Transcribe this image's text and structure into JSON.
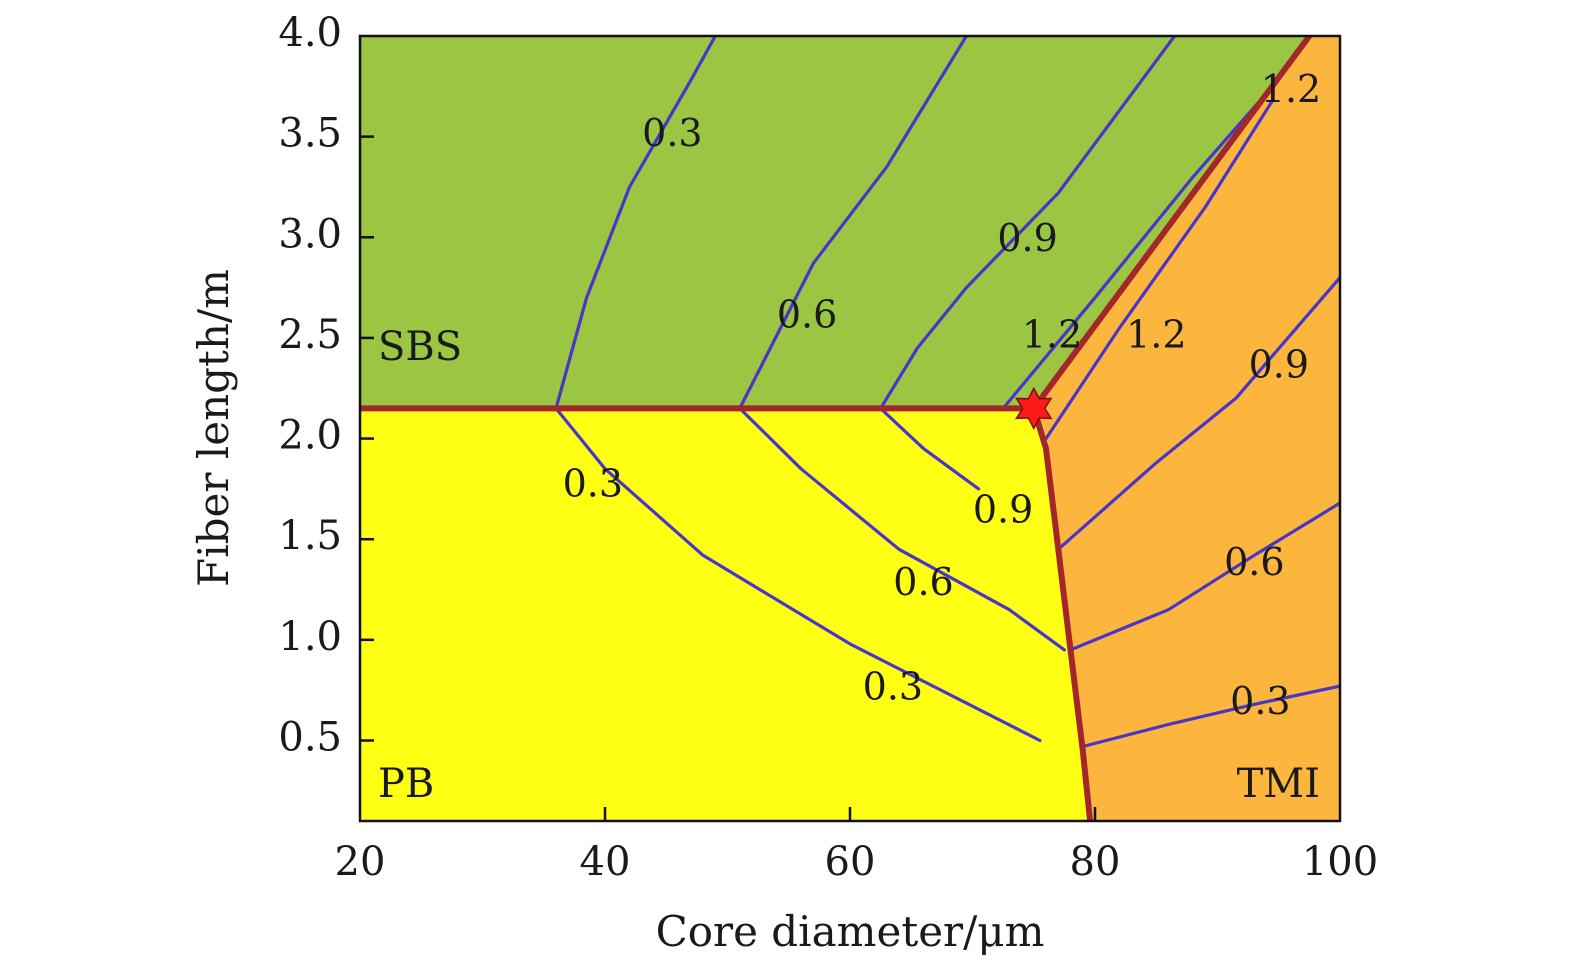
{
  "chart_data": {
    "type": "contour",
    "xlabel": "Core diameter/μm",
    "ylabel": "Fiber length/m",
    "xlim": [
      20,
      100
    ],
    "ylim": [
      0.1,
      4.0
    ],
    "x_ticks": [
      "20",
      "40",
      "60",
      "80",
      "100"
    ],
    "y_ticks": [
      "0.5",
      "1.0",
      "1.5",
      "2.0",
      "2.5",
      "3.0",
      "3.5",
      "4.0"
    ],
    "regions": [
      {
        "name": "SBS",
        "color": "#9bc643"
      },
      {
        "name": "PB",
        "color": "#ffff14"
      },
      {
        "name": "TMI",
        "color": "#fcb63e"
      }
    ],
    "boundaries": [
      {
        "name": "SBS-PB",
        "points": [
          [
            20,
            2.15
          ],
          [
            75,
            2.15
          ]
        ]
      },
      {
        "name": "SBS-TMI",
        "points": [
          [
            75,
            2.15
          ],
          [
            97.5,
            4.0
          ]
        ]
      },
      {
        "name": "PB-TMI",
        "points": [
          [
            75,
            2.15
          ],
          [
            76,
            1.95
          ],
          [
            77,
            1.45
          ],
          [
            78,
            0.95
          ],
          [
            79,
            0.45
          ],
          [
            79.6,
            0.1
          ]
        ]
      }
    ],
    "marker": {
      "symbol": "star",
      "x": 75,
      "y": 2.15,
      "color": "#ff1a1a"
    },
    "contours": [
      {
        "level": "0.3",
        "region": "SBS",
        "points": [
          [
            36,
            2.15
          ],
          [
            38.5,
            2.7
          ],
          [
            42,
            3.25
          ],
          [
            47,
            3.78
          ],
          [
            49,
            4.0
          ]
        ]
      },
      {
        "level": "0.6",
        "region": "SBS",
        "points": [
          [
            51,
            2.15
          ],
          [
            53.5,
            2.45
          ],
          [
            57,
            2.87
          ],
          [
            63,
            3.35
          ],
          [
            69.5,
            4.0
          ]
        ]
      },
      {
        "level": "0.9",
        "region": "SBS",
        "points": [
          [
            62.5,
            2.15
          ],
          [
            65.5,
            2.45
          ],
          [
            69.5,
            2.75
          ],
          [
            77,
            3.22
          ],
          [
            86.5,
            4.0
          ]
        ]
      },
      {
        "level": "1.2",
        "region": "SBS",
        "points": [
          [
            72.5,
            2.15
          ],
          [
            80,
            2.7
          ],
          [
            88,
            3.3
          ],
          [
            94.5,
            3.75
          ]
        ]
      },
      {
        "level": "0.3",
        "region": "PB",
        "points": [
          [
            36,
            2.15
          ],
          [
            40,
            1.85
          ],
          [
            48,
            1.42
          ],
          [
            60,
            0.98
          ],
          [
            75.5,
            0.5
          ]
        ]
      },
      {
        "level": "0.6",
        "region": "PB",
        "points": [
          [
            51,
            2.15
          ],
          [
            56,
            1.85
          ],
          [
            64,
            1.45
          ],
          [
            73,
            1.15
          ],
          [
            77.5,
            0.95
          ]
        ]
      },
      {
        "level": "0.9",
        "region": "PB",
        "points": [
          [
            62.5,
            2.15
          ],
          [
            66,
            1.95
          ],
          [
            70.5,
            1.75
          ]
        ]
      },
      {
        "level": "1.2",
        "region": "TMI",
        "points": [
          [
            76,
            2.0
          ],
          [
            82,
            2.55
          ],
          [
            89,
            3.15
          ],
          [
            94.5,
            3.68
          ]
        ]
      },
      {
        "level": "0.9",
        "region": "TMI",
        "points": [
          [
            77,
            1.45
          ],
          [
            85,
            1.88
          ],
          [
            91.5,
            2.2
          ],
          [
            100,
            2.8
          ]
        ]
      },
      {
        "level": "0.6",
        "region": "TMI",
        "points": [
          [
            78,
            0.95
          ],
          [
            86,
            1.15
          ],
          [
            93,
            1.42
          ],
          [
            100,
            1.68
          ]
        ]
      },
      {
        "level": "0.3",
        "region": "TMI",
        "points": [
          [
            79,
            0.47
          ],
          [
            86,
            0.58
          ],
          [
            93,
            0.68
          ],
          [
            100,
            0.77
          ]
        ]
      }
    ],
    "contour_labels": [
      {
        "text": "0.3",
        "x": 45.5,
        "y": 3.5
      },
      {
        "text": "0.6",
        "x": 56.5,
        "y": 2.6
      },
      {
        "text": "0.9",
        "x": 74.5,
        "y": 2.98
      },
      {
        "text": "1.2",
        "x": 76.5,
        "y": 2.5
      },
      {
        "text": "1.2",
        "x": 85,
        "y": 2.5
      },
      {
        "text": "1.2",
        "x": 96,
        "y": 3.72
      },
      {
        "text": "0.9",
        "x": 95,
        "y": 2.35
      },
      {
        "text": "0.3",
        "x": 39,
        "y": 1.76
      },
      {
        "text": "0.9",
        "x": 72.5,
        "y": 1.63
      },
      {
        "text": "0.6",
        "x": 66,
        "y": 1.27
      },
      {
        "text": "0.6",
        "x": 93,
        "y": 1.37
      },
      {
        "text": "0.3",
        "x": 63.5,
        "y": 0.75
      },
      {
        "text": "0.3",
        "x": 93.5,
        "y": 0.68
      }
    ]
  }
}
